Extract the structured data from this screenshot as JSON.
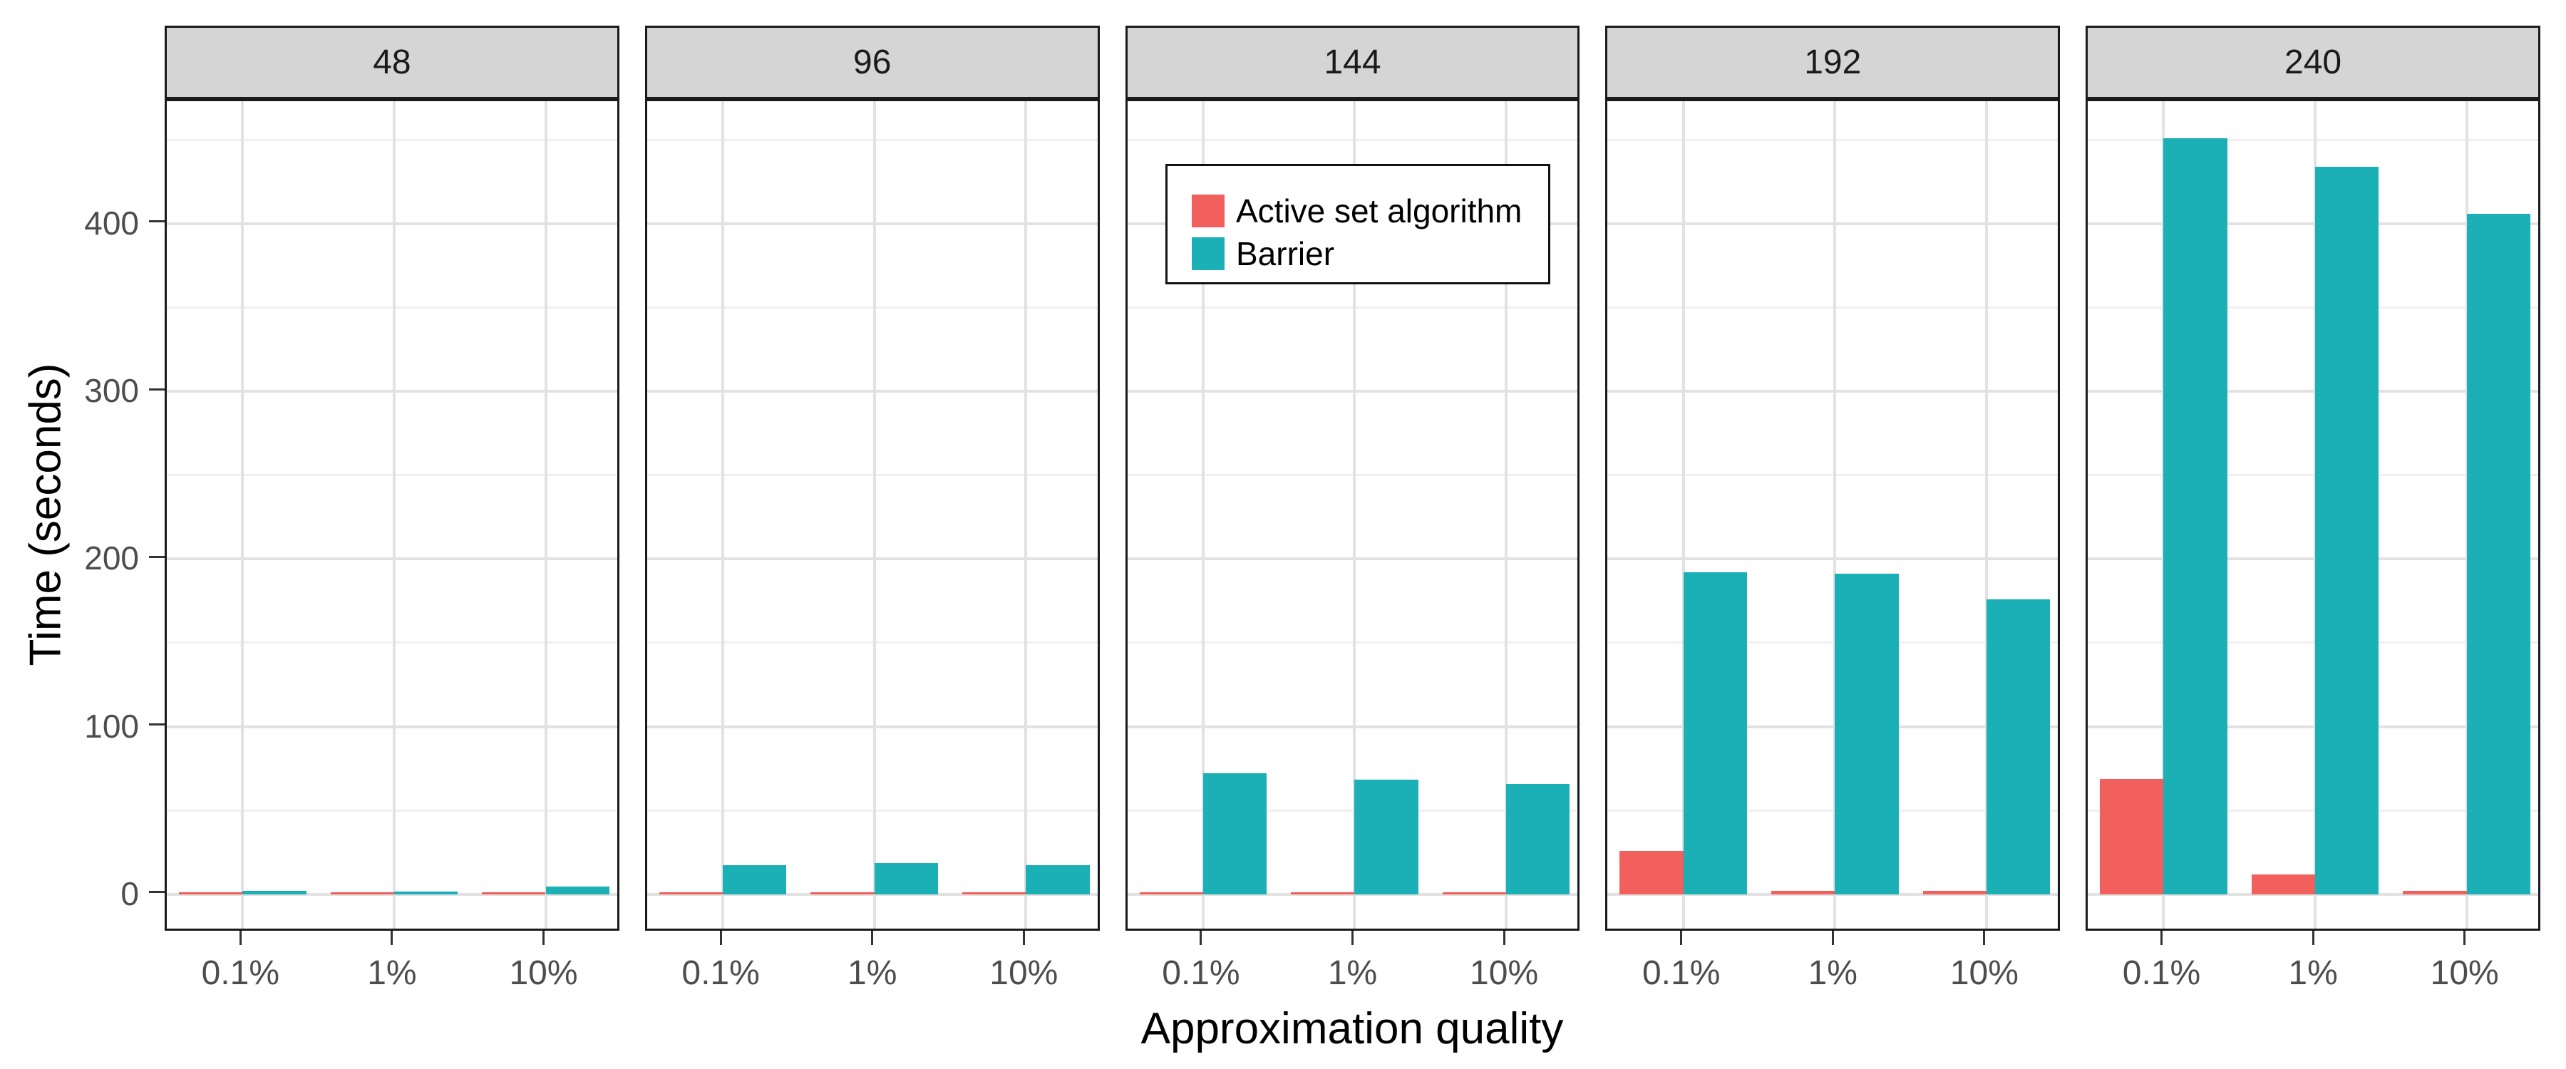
{
  "chart_data": {
    "type": "bar",
    "title": "",
    "xlabel": "Approximation quality",
    "ylabel": "Time (seconds)",
    "facet_labels": [
      "48",
      "96",
      "144",
      "192",
      "240"
    ],
    "categories": [
      "0.1%",
      "1%",
      "10%"
    ],
    "series": [
      {
        "name": "Active set algorithm",
        "color": "#F1605D",
        "values_by_facet": [
          [
            0.7,
            0.7,
            0.7
          ],
          [
            0.8,
            0.8,
            0.8
          ],
          [
            1.0,
            1.0,
            1.0
          ],
          [
            26.0,
            2.0,
            2.0
          ],
          [
            69.0,
            12.0,
            2.0
          ]
        ]
      },
      {
        "name": "Barrier",
        "color": "#1BB0B6",
        "values_by_facet": [
          [
            2.0,
            1.7,
            4.8
          ],
          [
            17.5,
            18.6,
            17.5
          ],
          [
            72.0,
            68.5,
            66.0
          ],
          [
            192.0,
            191.0,
            176.0
          ],
          [
            451.0,
            434.0,
            406.0
          ]
        ]
      }
    ],
    "y_ticks": [
      0,
      100,
      200,
      300,
      400
    ],
    "y_minor_gridlines": [
      50,
      150,
      250,
      350,
      450
    ],
    "ylim": [
      -23,
      473
    ],
    "grid": true,
    "legend_position": "inside panel 144, upper area"
  }
}
